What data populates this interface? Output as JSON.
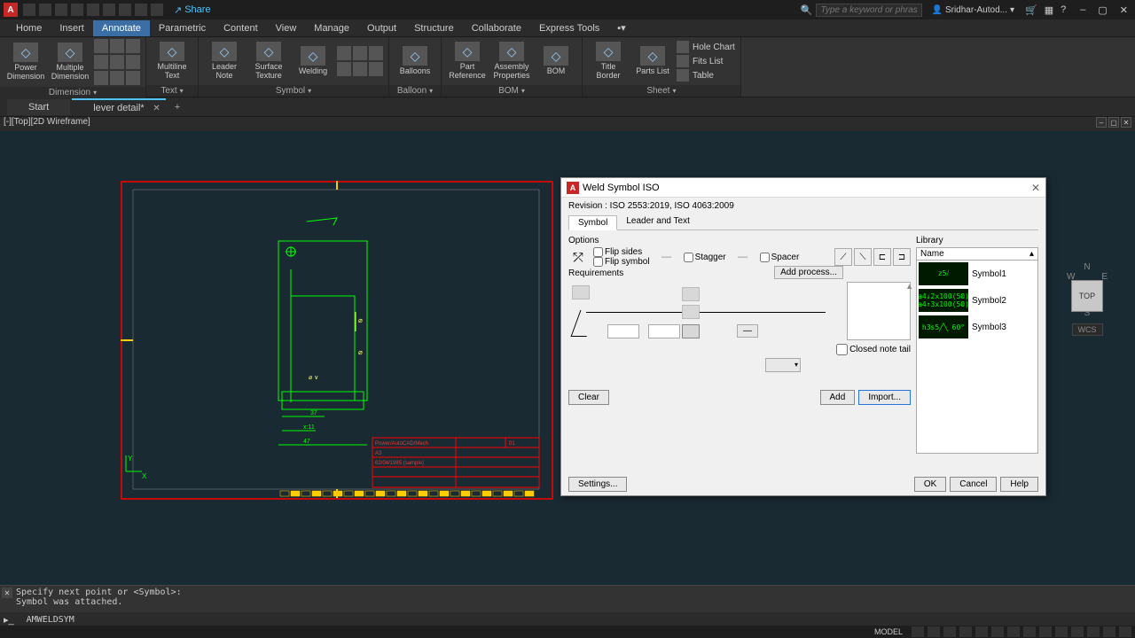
{
  "titlebar": {
    "share": "Share",
    "search_placeholder": "Type a keyword or phrase",
    "user": "Sridhar-Autod..."
  },
  "menu": {
    "tabs": [
      "Home",
      "Insert",
      "Annotate",
      "Parametric",
      "Content",
      "View",
      "Manage",
      "Output",
      "Structure",
      "Collaborate",
      "Express Tools"
    ],
    "active_index": 2
  },
  "ribbon": {
    "panels": [
      {
        "title": "Dimension",
        "items": [
          {
            "label": "Power\nDimension"
          },
          {
            "label": "Multiple\nDimension"
          }
        ]
      },
      {
        "title": "Text",
        "items": [
          {
            "label": "Multiline\nText"
          }
        ]
      },
      {
        "title": "Symbol",
        "items": [
          {
            "label": "Leader\nNote"
          },
          {
            "label": "Surface\nTexture"
          },
          {
            "label": "Welding"
          }
        ]
      },
      {
        "title": "Balloon",
        "items": [
          {
            "label": "Balloons"
          }
        ]
      },
      {
        "title": "BOM",
        "items": [
          {
            "label": "Part\nReference"
          },
          {
            "label": "Assembly\nProperties"
          },
          {
            "label": "BOM"
          }
        ]
      },
      {
        "title": "Sheet",
        "items": [
          {
            "label": "Title\nBorder"
          },
          {
            "label": "Parts\nList"
          }
        ],
        "list": [
          "Hole Chart",
          "Fits List",
          "Table"
        ]
      }
    ]
  },
  "doctabs": {
    "start": "Start",
    "active": "lever detail*"
  },
  "viewport": {
    "label": "[-][Top][2D Wireframe]"
  },
  "viewcube": {
    "top": "TOP",
    "n": "N",
    "s": "S",
    "e": "E",
    "w": "W",
    "wcs": "WCS"
  },
  "drawing": {
    "frame_color": "#ff0000",
    "linework_color": "#00ff00",
    "dim_color": "#ffff66",
    "annotations": {
      "d1": "37",
      "d2": "x:11",
      "d3": "47"
    },
    "titleblock_rows": [
      "Power/AutoCAD/Mech",
      "A3",
      "62/04/1985 (sample)",
      "",
      "—"
    ],
    "titleblock_color": "#e53935"
  },
  "dialog": {
    "title": "Weld Symbol ISO",
    "revision": "Revision : ISO 2553:2019, ISO 4063:2009",
    "tabs": [
      "Symbol",
      "Leader and Text"
    ],
    "options_label": "Options",
    "flip_sides": "Flip sides",
    "flip_symbol": "Flip symbol",
    "stagger": "Stagger",
    "spacer": "Spacer",
    "requirements": "Requirements",
    "add_process": "Add process...",
    "closed_note": "Closed note tail",
    "library": "Library",
    "name_header": "Name",
    "symbols": [
      {
        "thumb": "z5⧸",
        "name": "Symbol1"
      },
      {
        "thumb": "a4↓2x100(50)\na4↑3x100(50)",
        "name": "Symbol2"
      },
      {
        "thumb": "h3s5╱╲\n   60°",
        "name": "Symbol3"
      }
    ],
    "buttons": {
      "clear": "Clear",
      "add": "Add",
      "import": "Import...",
      "settings": "Settings...",
      "ok": "OK",
      "cancel": "Cancel",
      "help": "Help"
    }
  },
  "command": {
    "history": "Specify next point or <Symbol>:\nSymbol was attached.",
    "current": "AMWELDSYM"
  },
  "statusbar": {
    "model": "MODEL"
  }
}
